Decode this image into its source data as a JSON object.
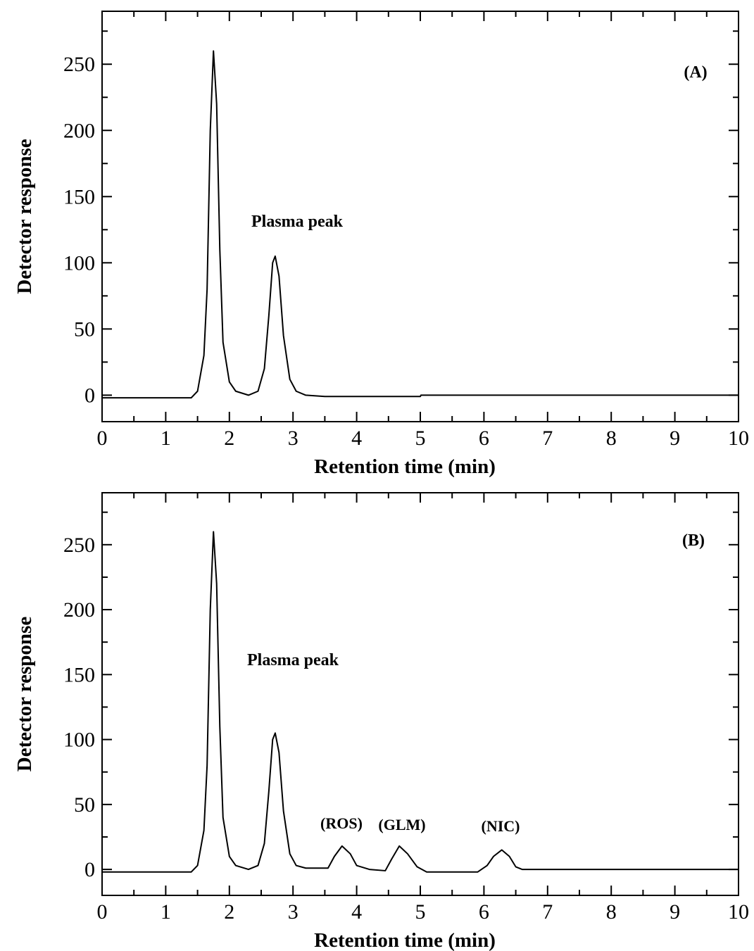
{
  "chart_data": [
    {
      "type": "line",
      "panel_label": "(A)",
      "xlabel": "Retention time (min)",
      "ylabel": "Detector response",
      "annotations": [
        "Plasma peak"
      ],
      "xlim": [
        0,
        10
      ],
      "ylim": [
        -20,
        290
      ],
      "xticks": [
        0,
        1,
        2,
        3,
        4,
        5,
        6,
        7,
        8,
        9,
        10
      ],
      "yticks": [
        0,
        50,
        100,
        150,
        200,
        250
      ],
      "minor_xticks": [
        0.5,
        1.5,
        2.5,
        3.5,
        4.5,
        5.5,
        6.5,
        7.5,
        8.5,
        9.5
      ],
      "minor_yticks": [
        25,
        75,
        125,
        175,
        225,
        275
      ],
      "series": [
        {
          "color": "#000000",
          "x": [
            0,
            1.0,
            1.4,
            1.5,
            1.6,
            1.65,
            1.7,
            1.75,
            1.8,
            1.85,
            1.9,
            2.0,
            2.1,
            2.3,
            2.45,
            2.55,
            2.62,
            2.68,
            2.72,
            2.78,
            2.85,
            2.95,
            3.05,
            3.2,
            3.5,
            5.0,
            5.01,
            10
          ],
          "values": [
            -2,
            -2,
            -2,
            3,
            30,
            80,
            200,
            260,
            220,
            110,
            40,
            10,
            3,
            0,
            3,
            20,
            60,
            100,
            105,
            90,
            45,
            12,
            3,
            0,
            -1,
            -1,
            0,
            0
          ]
        }
      ]
    },
    {
      "type": "line",
      "panel_label": "(B)",
      "xlabel": "Retention time (min)",
      "ylabel": "Detector response",
      "annotations": [
        "Plasma peak",
        "(ROS)",
        "(GLM)",
        "(NIC)"
      ],
      "xlim": [
        0,
        10
      ],
      "ylim": [
        -20,
        290
      ],
      "xticks": [
        0,
        1,
        2,
        3,
        4,
        5,
        6,
        7,
        8,
        9,
        10
      ],
      "yticks": [
        0,
        50,
        100,
        150,
        200,
        250
      ],
      "minor_xticks": [
        0.5,
        1.5,
        2.5,
        3.5,
        4.5,
        5.5,
        6.5,
        7.5,
        8.5,
        9.5
      ],
      "minor_yticks": [
        25,
        75,
        125,
        175,
        225,
        275
      ],
      "series": [
        {
          "color": "#000000",
          "x": [
            0,
            1.0,
            1.4,
            1.5,
            1.6,
            1.65,
            1.7,
            1.75,
            1.8,
            1.85,
            1.9,
            2.0,
            2.1,
            2.3,
            2.45,
            2.55,
            2.62,
            2.68,
            2.72,
            2.78,
            2.85,
            2.95,
            3.05,
            3.2,
            3.55,
            3.65,
            3.77,
            3.9,
            4.0,
            4.2,
            4.45,
            4.55,
            4.67,
            4.8,
            4.95,
            5.1,
            5.9,
            6.05,
            6.15,
            6.28,
            6.4,
            6.5,
            6.6,
            10
          ],
          "values": [
            -2,
            -2,
            -2,
            3,
            30,
            80,
            200,
            260,
            220,
            110,
            40,
            10,
            3,
            0,
            3,
            20,
            60,
            100,
            105,
            90,
            45,
            12,
            3,
            1,
            1,
            10,
            18,
            12,
            3,
            0,
            -1,
            8,
            18,
            12,
            2,
            -2,
            -2,
            3,
            10,
            15,
            10,
            2,
            0,
            0
          ]
        }
      ]
    }
  ]
}
